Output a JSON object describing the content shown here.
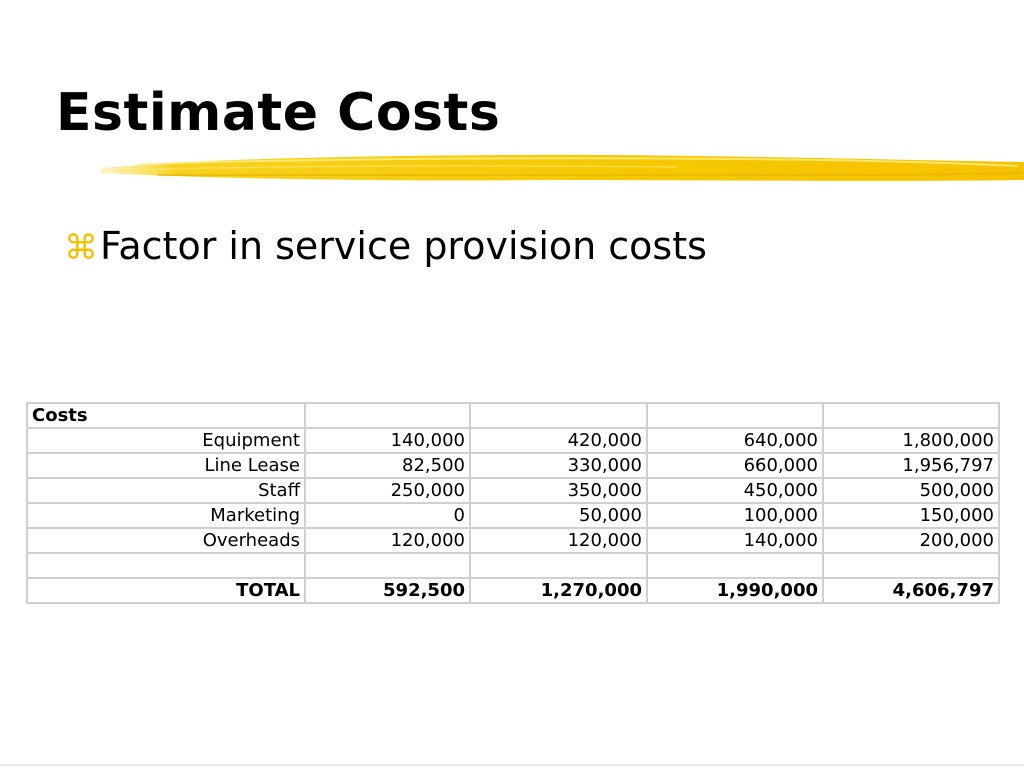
{
  "slide": {
    "title": "Estimate Costs",
    "bullet_icon": "command-key-icon",
    "bullet_text": "Factor in service provision costs",
    "accent_color": "#f2c400"
  },
  "table": {
    "header_label": "Costs",
    "rows": [
      {
        "label": "Equipment",
        "values": [
          "140,000",
          "420,000",
          "640,000",
          "1,800,000"
        ]
      },
      {
        "label": "Line Lease",
        "values": [
          "82,500",
          "330,000",
          "660,000",
          "1,956,797"
        ]
      },
      {
        "label": "Staff",
        "values": [
          "250,000",
          "350,000",
          "450,000",
          "500,000"
        ]
      },
      {
        "label": "Marketing",
        "values": [
          "0",
          "50,000",
          "100,000",
          "150,000"
        ]
      },
      {
        "label": "Overheads",
        "values": [
          "120,000",
          "120,000",
          "140,000",
          "200,000"
        ]
      }
    ],
    "total": {
      "label": "TOTAL",
      "values": [
        "592,500",
        "1,270,000",
        "1,990,000",
        "4,606,797"
      ]
    }
  }
}
